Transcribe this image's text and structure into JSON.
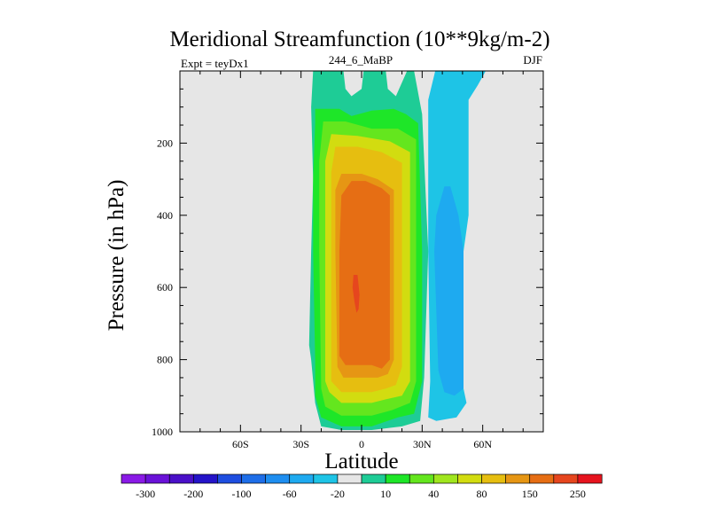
{
  "title": "Meridional Streamfunction (10**9kg/m-2)",
  "left_label": "Expt = teyDx1",
  "center_label": "244_6_MaBP",
  "right_label": "DJF",
  "chart_data": {
    "type": "filled_contour",
    "title": "Meridional Streamfunction (10**9kg/m-2)",
    "xlabel": "Latitude",
    "ylabel": "Pressure (in hPa)",
    "xlim": [
      -90,
      90
    ],
    "ylim": [
      1000,
      0
    ],
    "x_ticks": [
      {
        "value": -60,
        "label": "60S"
      },
      {
        "value": -30,
        "label": "30S"
      },
      {
        "value": 0,
        "label": "0"
      },
      {
        "value": 30,
        "label": "30N"
      },
      {
        "value": 60,
        "label": "60N"
      }
    ],
    "y_ticks": [
      {
        "value": 200,
        "label": "200"
      },
      {
        "value": 400,
        "label": "400"
      },
      {
        "value": 600,
        "label": "600"
      },
      {
        "value": 800,
        "label": "800"
      },
      {
        "value": 1000,
        "label": "1000"
      }
    ],
    "background_color": "#e6e6e6",
    "colorbar": {
      "colors": [
        "#8a1ae6",
        "#6a12d8",
        "#4a10c8",
        "#2414c8",
        "#1e4ee0",
        "#1e6ee8",
        "#1e8ef0",
        "#1eaaf0",
        "#1ec4e6",
        "#e6e6e6",
        "#1ecc96",
        "#1ee628",
        "#64e61e",
        "#a0e61e",
        "#d2dc10",
        "#e6be10",
        "#e69614",
        "#e66e14",
        "#e6461e",
        "#e6141e"
      ],
      "labels": [
        {
          "after": 0,
          "text": "-300"
        },
        {
          "after": 2,
          "text": "-200"
        },
        {
          "after": 4,
          "text": "-100"
        },
        {
          "after": 6,
          "text": "-60"
        },
        {
          "after": 8,
          "text": "-20"
        },
        {
          "after": 10,
          "text": "10"
        },
        {
          "after": 12,
          "text": "40"
        },
        {
          "after": 14,
          "text": "80"
        },
        {
          "after": 16,
          "text": "150"
        },
        {
          "after": 18,
          "text": "250"
        }
      ]
    },
    "regions": [
      {
        "name": "ferrel-north-weak",
        "color": "#1ec4e6",
        "points": [
          [
            44.5,
            0
          ],
          [
            61.5,
            0
          ],
          [
            57.5,
            40
          ],
          [
            53,
            80
          ],
          [
            53,
            400
          ],
          [
            50.5,
            500
          ],
          [
            50.5,
            880
          ],
          [
            52,
            920
          ],
          [
            47,
            960
          ],
          [
            37,
            970
          ],
          [
            33,
            960
          ],
          [
            34,
            860
          ],
          [
            33,
            500
          ],
          [
            33,
            80
          ],
          [
            36.5,
            0
          ]
        ]
      },
      {
        "name": "ferrel-north-strong",
        "color": "#1eaaf0",
        "points": [
          [
            41,
            320
          ],
          [
            44,
            320
          ],
          [
            48,
            400
          ],
          [
            50.5,
            500
          ],
          [
            50.5,
            880
          ],
          [
            46,
            900
          ],
          [
            41,
            890
          ],
          [
            38,
            830
          ],
          [
            36,
            500
          ],
          [
            37,
            400
          ]
        ]
      },
      {
        "name": "hadley-10",
        "color": "#1ecc96",
        "points": [
          [
            -24,
            0
          ],
          [
            -9,
            0
          ],
          [
            -8,
            50
          ],
          [
            -5,
            70
          ],
          [
            0,
            50
          ],
          [
            1,
            0
          ],
          [
            12,
            0
          ],
          [
            13,
            50
          ],
          [
            17,
            70
          ],
          [
            22.5,
            0
          ],
          [
            26,
            0
          ],
          [
            30,
            120
          ],
          [
            33,
            500
          ],
          [
            31,
            850
          ],
          [
            29,
            970
          ],
          [
            20,
            985
          ],
          [
            5,
            995
          ],
          [
            -10,
            995
          ],
          [
            -20,
            985
          ],
          [
            -23,
            920
          ],
          [
            -25,
            800
          ],
          [
            -26,
            760
          ],
          [
            -25,
            500
          ],
          [
            -24,
            300
          ],
          [
            -25,
            100
          ]
        ]
      },
      {
        "name": "hadley-40",
        "color": "#1ee628",
        "points": [
          [
            -23,
            105
          ],
          [
            -11,
            105
          ],
          [
            -5,
            125
          ],
          [
            5,
            110
          ],
          [
            16,
            105
          ],
          [
            22,
            120
          ],
          [
            28,
            145
          ],
          [
            30,
            500
          ],
          [
            30,
            860
          ],
          [
            26,
            950
          ],
          [
            18,
            960
          ],
          [
            5,
            985
          ],
          [
            -10,
            985
          ],
          [
            -20,
            960
          ],
          [
            -23,
            900
          ],
          [
            -23,
            800
          ],
          [
            -24,
            500
          ],
          [
            -24,
            300
          ],
          [
            -23,
            145
          ]
        ]
      },
      {
        "name": "hadley-80",
        "color": "#64e61e",
        "points": [
          [
            -19,
            140
          ],
          [
            -8,
            140
          ],
          [
            5,
            160
          ],
          [
            18,
            160
          ],
          [
            27,
            190
          ],
          [
            27,
            500
          ],
          [
            27,
            860
          ],
          [
            24,
            920
          ],
          [
            15,
            940
          ],
          [
            5,
            955
          ],
          [
            -10,
            955
          ],
          [
            -18,
            930
          ],
          [
            -20,
            880
          ],
          [
            -21,
            500
          ],
          [
            -21,
            250
          ]
        ]
      },
      {
        "name": "hadley-110",
        "color": "#d2dc10",
        "points": [
          [
            -15,
            175
          ],
          [
            -2,
            180
          ],
          [
            14,
            195
          ],
          [
            24,
            225
          ],
          [
            24,
            500
          ],
          [
            24,
            860
          ],
          [
            20,
            900
          ],
          [
            12,
            910
          ],
          [
            5,
            920
          ],
          [
            -10,
            920
          ],
          [
            -16,
            890
          ],
          [
            -18,
            860
          ],
          [
            -18,
            500
          ],
          [
            -18,
            250
          ]
        ]
      },
      {
        "name": "hadley-150",
        "color": "#e6be10",
        "points": [
          [
            -13,
            210
          ],
          [
            -2,
            210
          ],
          [
            10,
            225
          ],
          [
            20,
            255
          ],
          [
            20,
            500
          ],
          [
            20,
            820
          ],
          [
            17,
            870
          ],
          [
            12,
            880
          ],
          [
            5,
            890
          ],
          [
            -10,
            890
          ],
          [
            -15,
            860
          ],
          [
            -15,
            500
          ],
          [
            -15,
            280
          ]
        ]
      },
      {
        "name": "hadley-200",
        "color": "#e69614",
        "points": [
          [
            -10,
            285
          ],
          [
            0,
            285
          ],
          [
            8,
            300
          ],
          [
            16,
            330
          ],
          [
            16,
            500
          ],
          [
            16,
            800
          ],
          [
            13,
            840
          ],
          [
            8,
            850
          ],
          [
            0,
            850
          ],
          [
            -9,
            850
          ],
          [
            -12,
            820
          ],
          [
            -13,
            500
          ],
          [
            -13,
            330
          ]
        ]
      },
      {
        "name": "hadley-250",
        "color": "#e66e14",
        "points": [
          [
            -5,
            305
          ],
          [
            2,
            305
          ],
          [
            10,
            325
          ],
          [
            14,
            345
          ],
          [
            14,
            500
          ],
          [
            14,
            800
          ],
          [
            10,
            825
          ],
          [
            5,
            815
          ],
          [
            0,
            815
          ],
          [
            -8,
            815
          ],
          [
            -11,
            790
          ],
          [
            -11,
            500
          ],
          [
            -10,
            345
          ]
        ]
      },
      {
        "name": "hadley-max",
        "color": "#e6461e",
        "points": [
          [
            -4,
            565
          ],
          [
            -2,
            565
          ],
          [
            -1,
            620
          ],
          [
            -1.5,
            660
          ],
          [
            -2.5,
            670
          ],
          [
            -3.5,
            640
          ],
          [
            -4.5,
            600
          ]
        ]
      }
    ]
  }
}
